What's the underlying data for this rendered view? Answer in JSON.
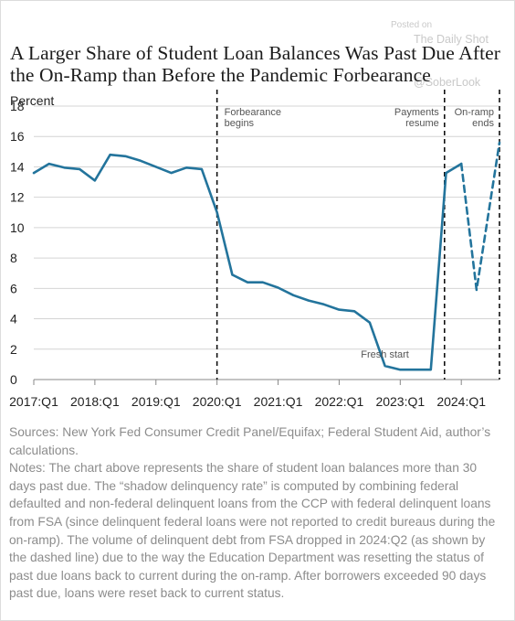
{
  "watermark": {
    "posted": "Posted on",
    "site": "The Daily Shot",
    "handle": "@SoberLook"
  },
  "title": "A Larger Share of Student Loan Balances Was Past Due After the On-Ramp than Before the Pandemic Forbearance",
  "chart_data": {
    "type": "line",
    "ylabel": "Percent",
    "ylim": [
      0,
      18
    ],
    "yticks": [
      0,
      2,
      4,
      6,
      8,
      10,
      12,
      14,
      16,
      18
    ],
    "xlabels": [
      "2017:Q1",
      "2018:Q1",
      "2019:Q1",
      "2020:Q1",
      "2021:Q1",
      "2022:Q1",
      "2023:Q1",
      "2024:Q1"
    ],
    "xlim": [
      0,
      30.5
    ],
    "grid": "horizontal",
    "series": [
      {
        "style": "solid",
        "color": "#23749c",
        "x": [
          0,
          1,
          2,
          3,
          4,
          5,
          6,
          7,
          8,
          9,
          10,
          11,
          12,
          13,
          14,
          15,
          16,
          17,
          18,
          19,
          20,
          21,
          22,
          23,
          24,
          25,
          26,
          27,
          28
        ],
        "y": [
          13.6,
          14.2,
          13.95,
          13.85,
          13.1,
          14.8,
          14.7,
          14.4,
          14.0,
          13.6,
          13.95,
          13.85,
          11.0,
          6.9,
          6.4,
          6.4,
          6.05,
          5.55,
          5.2,
          4.95,
          4.6,
          4.5,
          3.75,
          0.9,
          0.65,
          0.65,
          0.65,
          13.6,
          14.2
        ]
      },
      {
        "style": "dashed",
        "color": "#23749c",
        "x": [
          28,
          29,
          30.5
        ],
        "y": [
          14.2,
          5.9,
          15.6
        ]
      }
    ],
    "events": [
      {
        "x": 12,
        "label": "Forbearance begins",
        "lines": [
          "Forbearance",
          "begins"
        ],
        "align": "left"
      },
      {
        "x": 26.9,
        "label": "Payments resume",
        "lines": [
          "Payments",
          "resume"
        ],
        "align": "right"
      },
      {
        "x": 30.5,
        "label": "On-ramp ends",
        "lines": [
          "On-ramp",
          "ends"
        ],
        "align": "right"
      }
    ],
    "annotations": [
      {
        "text": "Fresh start",
        "x": 23,
        "y": 1.7
      }
    ]
  },
  "notes": {
    "sources": "Sources: New York Fed Consumer Credit Panel/Equifax; Federal Student Aid, author’s calculations.",
    "notes": "Notes: The chart above represents the share of student loan balances more than 30 days past due. The “shadow delinquency rate” is computed by combining federal defaulted and non-federal delinquent loans from the CCP with federal delinquent loans from FSA (since delinquent federal loans were not reported to credit bureaus during the on-ramp). The volume of delinquent debt from FSA dropped in 2024:Q2 (as shown by the dashed line) due to the way the Education Department was resetting the status of past due loans back to current during the on-ramp. After borrowers exceeded 90 days past due, loans were reset back to current status."
  }
}
